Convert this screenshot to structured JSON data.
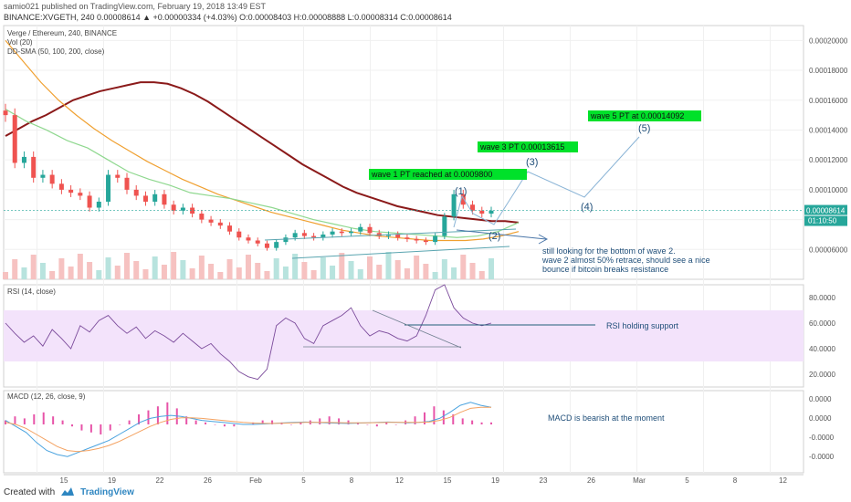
{
  "header": {
    "line1": "samio021 published on TradingView.com, February 19, 2018 13:49 EST",
    "line2": "BINANCE:XVGETH, 240  0.00008614  ▲ +0.00000334 (+4.03%)  O:0.00008403  H:0.00008888  L:0.00008314  C:0.00008614"
  },
  "legend": {
    "symbol": "Verge / Ethereum, 240, BINANCE",
    "vol": "Vol (20)",
    "sma": "DD-SMA (50, 100, 200, close)",
    "rsi": "RSI (14, close)",
    "macd": "MACD (12, 26, close, 9)"
  },
  "footer": {
    "created_with": "Created with",
    "brand": "TradingView"
  },
  "chart_data": {
    "type": "candlestick",
    "symbol": "BINANCE:XVGETH",
    "interval": "240",
    "last_price": "0.00008614",
    "price_axis": [
      "0.00020000",
      "0.00018000",
      "0.00016000",
      "0.00014000",
      "0.00012000",
      "0.00010000",
      "0.00008000",
      "0.00006000"
    ],
    "price_range": [
      4e-05,
      0.00021
    ],
    "last_label": "0.00008614",
    "countdown": "01:10:50",
    "time_axis": [
      "15",
      "19",
      "22",
      "26",
      "Feb",
      "5",
      "8",
      "12",
      "15",
      "19",
      "23",
      "26",
      "Mar",
      "5",
      "8",
      "12"
    ],
    "close_series": [
      0.00015,
      0.000118,
      0.000122,
      0.000108,
      0.00011,
      0.000104,
      0.0001,
      9.8e-05,
      9.6e-05,
      8.8e-05,
      9.2e-05,
      0.00011,
      0.000108,
      0.0001,
      9.6e-05,
      9.2e-05,
      9.7e-05,
      9e-05,
      8.6e-05,
      8.8e-05,
      8.4e-05,
      8e-05,
      7.8e-05,
      7.6e-05,
      7.2e-05,
      6.8e-05,
      6.6e-05,
      6.4e-05,
      6.1e-05,
      6.5e-05,
      6.8e-05,
      7.1e-05,
      6.9e-05,
      6.8e-05,
      7e-05,
      7.2e-05,
      7.1e-05,
      7.2e-05,
      7.5e-05,
      7.1e-05,
      6.9e-05,
      7e-05,
      6.8e-05,
      6.7e-05,
      6.6e-05,
      6.5e-05,
      6.9e-05,
      8.2e-05,
      9.7e-05,
      9e-05,
      8.6e-05,
      8.4e-05,
      8.6e-05
    ],
    "sma_200": [
      0.000136,
      0.000141,
      0.000146,
      0.00015,
      0.000155,
      0.00016,
      0.000163,
      0.000166,
      0.000168,
      0.00017,
      0.000172,
      0.000172,
      0.000171,
      0.000168,
      0.000164,
      0.000159,
      0.000153,
      0.000147,
      0.000141,
      0.000135,
      0.000129,
      0.000123,
      0.000117,
      0.000112,
      0.000107,
      0.000102,
      9.8e-05,
      9.5e-05,
      9.2e-05,
      8.9e-05,
      8.7e-05,
      8.5e-05,
      8.3e-05,
      8.2e-05,
      8.1e-05,
      8e-05,
      7.9e-05,
      7.9e-05,
      7.8e-05
    ],
    "sma_100": [
      0.0002,
      0.000186,
      0.000172,
      0.00016,
      0.00015,
      0.000141,
      0.000133,
      0.000126,
      0.000119,
      0.000113,
      0.000107,
      0.000102,
      9.7e-05,
      9.3e-05,
      8.9e-05,
      8.5e-05,
      8.2e-05,
      7.9e-05,
      7.6e-05,
      7.3e-05,
      7.1e-05,
      6.9e-05,
      6.8e-05,
      6.7e-05,
      6.6e-05,
      6.6e-05,
      6.6e-05,
      6.7e-05,
      6.9e-05,
      7.2e-05
    ],
    "sma_50": [
      0.000154,
      0.000146,
      0.00014,
      0.000133,
      0.000128,
      0.00012,
      0.000112,
      0.000107,
      0.000103,
      9.8e-05,
      9.6e-05,
      9.4e-05,
      9.1e-05,
      8.8e-05,
      8.4e-05,
      8e-05,
      7.7e-05,
      7.4e-05,
      7.2e-05,
      7.1e-05,
      7e-05,
      6.9e-05,
      6.8e-05,
      6.9e-05,
      7.2e-05,
      7.8e-05
    ],
    "annotations": [
      {
        "label": "wave 1 PT reached at 0.0009800"
      },
      {
        "label": "wave 3 PT 0.00013615"
      },
      {
        "label": "wave 5  PT at 0.00014092"
      },
      {
        "label": "(1)"
      },
      {
        "label": "(2)"
      },
      {
        "label": "(3)"
      },
      {
        "label": "(4)"
      },
      {
        "label": "(5)"
      }
    ],
    "note_lines": [
      "still looking for the bottom of wave 2.",
      "wave 2 almost 50% retrace, should see a nice",
      "bounce if bitcoin breaks resistance"
    ],
    "rsi": {
      "axis": [
        "80.0000",
        "60.0000",
        "40.0000",
        "20.0000"
      ],
      "range": [
        10,
        90
      ],
      "band": [
        30,
        70
      ],
      "values": [
        60,
        52,
        45,
        50,
        42,
        55,
        48,
        40,
        58,
        53,
        62,
        66,
        58,
        52,
        57,
        48,
        54,
        50,
        45,
        52,
        46,
        40,
        44,
        36,
        30,
        22,
        18,
        16,
        24,
        58,
        64,
        60,
        48,
        44,
        58,
        62,
        66,
        72,
        58,
        50,
        54,
        52,
        48,
        46,
        50,
        66,
        86,
        90,
        72,
        64,
        60,
        58,
        60
      ],
      "note": "RSI holding support"
    },
    "macd": {
      "axis": [
        "0.0000",
        "0.0000",
        "-0.0000",
        "-0.0000"
      ],
      "histogram": [
        2,
        4,
        3,
        5,
        6,
        4,
        2,
        -1,
        -3,
        -4,
        -5,
        -3,
        0,
        2,
        5,
        7,
        9,
        11,
        8,
        4,
        2,
        1,
        0,
        -1,
        -1,
        0,
        1,
        2,
        2,
        1,
        0,
        1,
        2,
        3,
        4,
        3,
        2,
        1,
        0,
        -1,
        1,
        0,
        2,
        4,
        6,
        9,
        7,
        5,
        3,
        2,
        1,
        1
      ],
      "macd_line": [
        0.2,
        -0.1,
        -0.4,
        -0.9,
        -1.3,
        -1.5,
        -1.6,
        -1.4,
        -1.2,
        -1.0,
        -0.8,
        -0.5,
        -0.2,
        0.1,
        0.3,
        0.4,
        0.45,
        0.4,
        0.3,
        0.2,
        0.15,
        0.1,
        0.05,
        0.0,
        0.0,
        0.02,
        0.05,
        0.08,
        0.1,
        0.12,
        0.1,
        0.08,
        0.06,
        0.05,
        0.06,
        0.08,
        0.1,
        0.12,
        0.1,
        0.08,
        0.1,
        0.15,
        0.3,
        0.6,
        0.95,
        1.1,
        0.95,
        0.85
      ],
      "signal_line": [
        0.1,
        0.0,
        -0.2,
        -0.5,
        -0.8,
        -1.1,
        -1.3,
        -1.35,
        -1.3,
        -1.2,
        -1.05,
        -0.85,
        -0.6,
        -0.35,
        -0.1,
        0.1,
        0.25,
        0.33,
        0.33,
        0.3,
        0.25,
        0.2,
        0.15,
        0.1,
        0.07,
        0.05,
        0.05,
        0.06,
        0.08,
        0.1,
        0.1,
        0.1,
        0.09,
        0.08,
        0.08,
        0.08,
        0.09,
        0.1,
        0.1,
        0.1,
        0.1,
        0.12,
        0.2,
        0.35,
        0.6,
        0.8,
        0.85,
        0.85
      ],
      "note": "MACD is bearish at the moment"
    },
    "colors": {
      "up": "#26a69a",
      "down": "#ef5350",
      "sma200": "#8b1a1a",
      "sma100": "#f0a030",
      "sma50": "#8fd88f",
      "rsi_line": "#7b4b9b",
      "rsi_band": "#f3e3fb",
      "macd_hist": "#e754a8",
      "macd_line": "#4aa3df",
      "signal_line": "#f4a261",
      "wave_label_bg": "#00e12a",
      "wave_count": "#1f4e79",
      "note_text": "#1f4e79"
    }
  }
}
